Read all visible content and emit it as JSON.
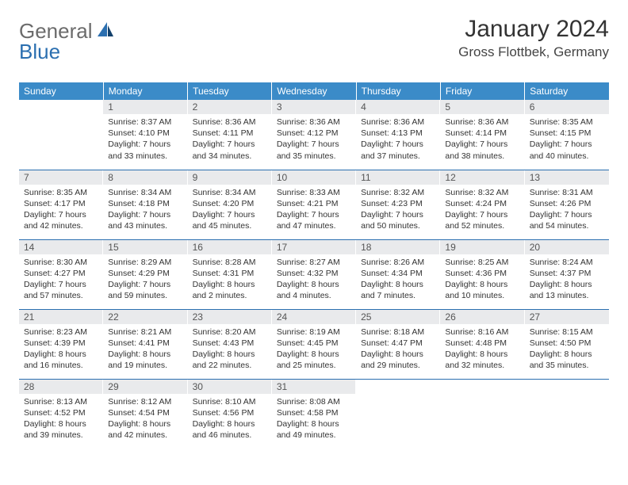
{
  "brand": {
    "part1": "General",
    "part2": "Blue"
  },
  "title": "January 2024",
  "location": "Gross Flottbek, Germany",
  "colors": {
    "header_bg": "#3b8bc8",
    "daynum_bg": "#e9eaec",
    "border": "#2b6fb0",
    "logo_gray": "#6b6b6b",
    "logo_blue": "#2b6fb0"
  },
  "weekdays": [
    "Sunday",
    "Monday",
    "Tuesday",
    "Wednesday",
    "Thursday",
    "Friday",
    "Saturday"
  ],
  "weeks": [
    [
      {
        "n": "",
        "lines": [
          "",
          "",
          "",
          ""
        ]
      },
      {
        "n": "1",
        "lines": [
          "Sunrise: 8:37 AM",
          "Sunset: 4:10 PM",
          "Daylight: 7 hours",
          "and 33 minutes."
        ]
      },
      {
        "n": "2",
        "lines": [
          "Sunrise: 8:36 AM",
          "Sunset: 4:11 PM",
          "Daylight: 7 hours",
          "and 34 minutes."
        ]
      },
      {
        "n": "3",
        "lines": [
          "Sunrise: 8:36 AM",
          "Sunset: 4:12 PM",
          "Daylight: 7 hours",
          "and 35 minutes."
        ]
      },
      {
        "n": "4",
        "lines": [
          "Sunrise: 8:36 AM",
          "Sunset: 4:13 PM",
          "Daylight: 7 hours",
          "and 37 minutes."
        ]
      },
      {
        "n": "5",
        "lines": [
          "Sunrise: 8:36 AM",
          "Sunset: 4:14 PM",
          "Daylight: 7 hours",
          "and 38 minutes."
        ]
      },
      {
        "n": "6",
        "lines": [
          "Sunrise: 8:35 AM",
          "Sunset: 4:15 PM",
          "Daylight: 7 hours",
          "and 40 minutes."
        ]
      }
    ],
    [
      {
        "n": "7",
        "lines": [
          "Sunrise: 8:35 AM",
          "Sunset: 4:17 PM",
          "Daylight: 7 hours",
          "and 42 minutes."
        ]
      },
      {
        "n": "8",
        "lines": [
          "Sunrise: 8:34 AM",
          "Sunset: 4:18 PM",
          "Daylight: 7 hours",
          "and 43 minutes."
        ]
      },
      {
        "n": "9",
        "lines": [
          "Sunrise: 8:34 AM",
          "Sunset: 4:20 PM",
          "Daylight: 7 hours",
          "and 45 minutes."
        ]
      },
      {
        "n": "10",
        "lines": [
          "Sunrise: 8:33 AM",
          "Sunset: 4:21 PM",
          "Daylight: 7 hours",
          "and 47 minutes."
        ]
      },
      {
        "n": "11",
        "lines": [
          "Sunrise: 8:32 AM",
          "Sunset: 4:23 PM",
          "Daylight: 7 hours",
          "and 50 minutes."
        ]
      },
      {
        "n": "12",
        "lines": [
          "Sunrise: 8:32 AM",
          "Sunset: 4:24 PM",
          "Daylight: 7 hours",
          "and 52 minutes."
        ]
      },
      {
        "n": "13",
        "lines": [
          "Sunrise: 8:31 AM",
          "Sunset: 4:26 PM",
          "Daylight: 7 hours",
          "and 54 minutes."
        ]
      }
    ],
    [
      {
        "n": "14",
        "lines": [
          "Sunrise: 8:30 AM",
          "Sunset: 4:27 PM",
          "Daylight: 7 hours",
          "and 57 minutes."
        ]
      },
      {
        "n": "15",
        "lines": [
          "Sunrise: 8:29 AM",
          "Sunset: 4:29 PM",
          "Daylight: 7 hours",
          "and 59 minutes."
        ]
      },
      {
        "n": "16",
        "lines": [
          "Sunrise: 8:28 AM",
          "Sunset: 4:31 PM",
          "Daylight: 8 hours",
          "and 2 minutes."
        ]
      },
      {
        "n": "17",
        "lines": [
          "Sunrise: 8:27 AM",
          "Sunset: 4:32 PM",
          "Daylight: 8 hours",
          "and 4 minutes."
        ]
      },
      {
        "n": "18",
        "lines": [
          "Sunrise: 8:26 AM",
          "Sunset: 4:34 PM",
          "Daylight: 8 hours",
          "and 7 minutes."
        ]
      },
      {
        "n": "19",
        "lines": [
          "Sunrise: 8:25 AM",
          "Sunset: 4:36 PM",
          "Daylight: 8 hours",
          "and 10 minutes."
        ]
      },
      {
        "n": "20",
        "lines": [
          "Sunrise: 8:24 AM",
          "Sunset: 4:37 PM",
          "Daylight: 8 hours",
          "and 13 minutes."
        ]
      }
    ],
    [
      {
        "n": "21",
        "lines": [
          "Sunrise: 8:23 AM",
          "Sunset: 4:39 PM",
          "Daylight: 8 hours",
          "and 16 minutes."
        ]
      },
      {
        "n": "22",
        "lines": [
          "Sunrise: 8:21 AM",
          "Sunset: 4:41 PM",
          "Daylight: 8 hours",
          "and 19 minutes."
        ]
      },
      {
        "n": "23",
        "lines": [
          "Sunrise: 8:20 AM",
          "Sunset: 4:43 PM",
          "Daylight: 8 hours",
          "and 22 minutes."
        ]
      },
      {
        "n": "24",
        "lines": [
          "Sunrise: 8:19 AM",
          "Sunset: 4:45 PM",
          "Daylight: 8 hours",
          "and 25 minutes."
        ]
      },
      {
        "n": "25",
        "lines": [
          "Sunrise: 8:18 AM",
          "Sunset: 4:47 PM",
          "Daylight: 8 hours",
          "and 29 minutes."
        ]
      },
      {
        "n": "26",
        "lines": [
          "Sunrise: 8:16 AM",
          "Sunset: 4:48 PM",
          "Daylight: 8 hours",
          "and 32 minutes."
        ]
      },
      {
        "n": "27",
        "lines": [
          "Sunrise: 8:15 AM",
          "Sunset: 4:50 PM",
          "Daylight: 8 hours",
          "and 35 minutes."
        ]
      }
    ],
    [
      {
        "n": "28",
        "lines": [
          "Sunrise: 8:13 AM",
          "Sunset: 4:52 PM",
          "Daylight: 8 hours",
          "and 39 minutes."
        ]
      },
      {
        "n": "29",
        "lines": [
          "Sunrise: 8:12 AM",
          "Sunset: 4:54 PM",
          "Daylight: 8 hours",
          "and 42 minutes."
        ]
      },
      {
        "n": "30",
        "lines": [
          "Sunrise: 8:10 AM",
          "Sunset: 4:56 PM",
          "Daylight: 8 hours",
          "and 46 minutes."
        ]
      },
      {
        "n": "31",
        "lines": [
          "Sunrise: 8:08 AM",
          "Sunset: 4:58 PM",
          "Daylight: 8 hours",
          "and 49 minutes."
        ]
      },
      {
        "n": "",
        "lines": [
          "",
          "",
          "",
          ""
        ]
      },
      {
        "n": "",
        "lines": [
          "",
          "",
          "",
          ""
        ]
      },
      {
        "n": "",
        "lines": [
          "",
          "",
          "",
          ""
        ]
      }
    ]
  ]
}
